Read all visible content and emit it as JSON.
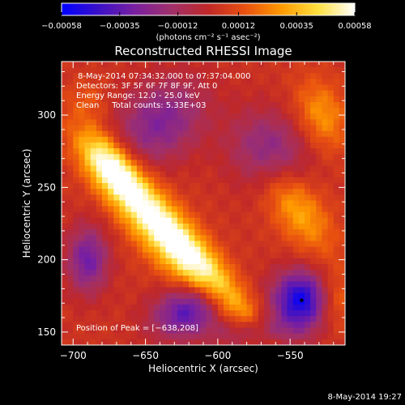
{
  "chart_data": {
    "type": "heatmap",
    "title": "Reconstructed RHESSI Image",
    "xlabel": "Heliocentric X (arcsec)",
    "ylabel": "Heliocentric Y (arcsec)",
    "xlim": [
      -708,
      -512
    ],
    "ylim": [
      141,
      337
    ],
    "x_ticks": [
      -700,
      -650,
      -600,
      -550
    ],
    "y_ticks": [
      150,
      200,
      250,
      300
    ],
    "colorbar": {
      "min": -0.00058,
      "max": 0.00058,
      "ticks": [
        "-0.00058",
        "-0.00035",
        "-0.00012",
        "0.00012",
        "0.00035",
        "0.00058"
      ],
      "unit_label": "(photons cm⁻² s⁻¹ asec⁻²)",
      "colors": [
        "#0000ff",
        "#3a10c8",
        "#7a20a0",
        "#a0306a",
        "#c02828",
        "#e85010",
        "#ff9a00",
        "#ffe040",
        "#ffffff"
      ]
    },
    "annotations": [
      "8-May-2014 07:34:32.000 to 07:37:04.000",
      "Detectors: 3F 5F 6F 7F 8F 9F, Att 0",
      "Energy Range: 12.0 - 25.0 keV",
      "Clean     Total counts: 5.33E+03"
    ],
    "peak_label": "Position of Peak = [-638,208]",
    "peak": {
      "x": -638,
      "y": 208
    },
    "min_marker": {
      "x": -542,
      "y": 172
    },
    "features": [
      {
        "x": -675,
        "y": 265,
        "sx": 10,
        "sy": 20,
        "amp": 0.00044,
        "angle_deg": 40
      },
      {
        "x": -640,
        "y": 222,
        "sx": 12,
        "sy": 42,
        "amp": 0.00052,
        "angle_deg": 40
      },
      {
        "x": -598,
        "y": 182,
        "sx": 9,
        "sy": 38,
        "amp": 0.00028,
        "angle_deg": 40
      },
      {
        "x": -545,
        "y": 235,
        "sx": 12,
        "sy": 25,
        "amp": 0.00028,
        "angle_deg": 35
      },
      {
        "x": -528,
        "y": 300,
        "sx": 12,
        "sy": 18,
        "amp": 0.00024,
        "angle_deg": 20
      },
      {
        "x": -520,
        "y": 172,
        "sx": 10,
        "sy": 14,
        "amp": 0.0002,
        "angle_deg": 0
      },
      {
        "x": -690,
        "y": 310,
        "sx": 10,
        "sy": 10,
        "amp": 0.0001,
        "angle_deg": 0
      },
      {
        "x": -690,
        "y": 200,
        "sx": 10,
        "sy": 16,
        "amp": -0.00035,
        "angle_deg": 0
      },
      {
        "x": -640,
        "y": 295,
        "sx": 24,
        "sy": 18,
        "amp": -0.0003,
        "angle_deg": 40
      },
      {
        "x": -620,
        "y": 165,
        "sx": 18,
        "sy": 12,
        "amp": -0.00042,
        "angle_deg": 20
      },
      {
        "x": -565,
        "y": 275,
        "sx": 18,
        "sy": 20,
        "amp": -0.00028,
        "angle_deg": 40
      },
      {
        "x": -542,
        "y": 172,
        "sx": 14,
        "sy": 14,
        "amp": -0.00058,
        "angle_deg": 0
      },
      {
        "x": -575,
        "y": 150,
        "sx": 20,
        "sy": 8,
        "amp": -0.00025,
        "angle_deg": 0
      }
    ]
  },
  "footer": {
    "timestamp": "8-May-2014 19:27"
  }
}
